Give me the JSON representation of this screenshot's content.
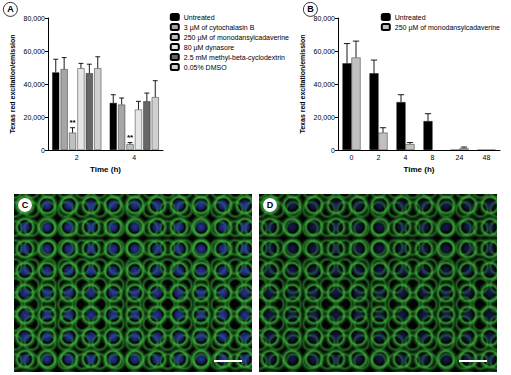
{
  "chart_data": [
    {
      "type": "bar",
      "title": "A",
      "x_label": "Time (h)",
      "y_label": "Texas red excitation/emission",
      "categories": [
        "2",
        "4"
      ],
      "series": [
        {
          "name": "Untreated",
          "color": "#000000",
          "values": [
            47000,
            28500
          ],
          "errors": [
            8000,
            5000
          ]
        },
        {
          "name": "3 µM of cytochalasin B",
          "color": "#a6a6a6",
          "values": [
            49000,
            27500
          ],
          "errors": [
            7000,
            4000
          ]
        },
        {
          "name": "250 µM of monodansylcadaverine",
          "color": "#bfbfbf",
          "values": [
            10500,
            3500
          ],
          "errors": [
            3000,
            1000
          ],
          "annotations": [
            "**",
            "**"
          ]
        },
        {
          "name": "80 µM dynasore",
          "color": "#e6e6e6",
          "values": [
            49500,
            24500
          ],
          "errors": [
            3000,
            5000
          ]
        },
        {
          "name": "2.5 mM methyl-beta-cyclodextrin",
          "color": "#666666",
          "values": [
            46500,
            29500
          ],
          "errors": [
            5500,
            5000
          ]
        },
        {
          "name": "0.05% DMSO",
          "color": "#d0d0d0",
          "values": [
            49500,
            32000
          ],
          "errors": [
            7000,
            10000
          ]
        }
      ],
      "ylim": [
        0,
        80000
      ],
      "yticks": [
        0,
        {
          "value": 20000,
          "label": "20,000"
        },
        {
          "value": 40000,
          "label": "40,000"
        },
        {
          "value": 60000,
          "label": "60,000"
        },
        {
          "value": 80000,
          "label": "80,000"
        }
      ],
      "grid": false,
      "legend": "upper right"
    },
    {
      "type": "bar",
      "title": "B",
      "x_label": "Time (h)",
      "y_label": "Texas red excitation/emission",
      "categories": [
        "0",
        "2",
        "4",
        "8",
        "24",
        "48"
      ],
      "series": [
        {
          "name": "Untreated",
          "color": "#000000",
          "values": [
            52500,
            46500,
            29000,
            17500,
            0,
            0
          ],
          "errors": [
            12000,
            8000,
            4500,
            4500,
            0,
            0
          ]
        },
        {
          "name": "250 µM of monodansylcadaverine",
          "color": "#c0c0c0",
          "values": [
            56000,
            10500,
            3500,
            null,
            1000,
            0
          ],
          "errors": [
            10000,
            3000,
            1000,
            null,
            800,
            0
          ]
        }
      ],
      "ylim": [
        0,
        80000
      ],
      "yticks": [
        0,
        {
          "value": 20000,
          "label": "20,000"
        },
        {
          "value": 40000,
          "label": "40,000"
        },
        {
          "value": 60000,
          "label": "60,000"
        },
        {
          "value": 80000,
          "label": "80,000"
        }
      ],
      "grid": false,
      "legend": "upper right"
    }
  ],
  "images": [
    {
      "label": "C"
    },
    {
      "label": "D"
    }
  ]
}
